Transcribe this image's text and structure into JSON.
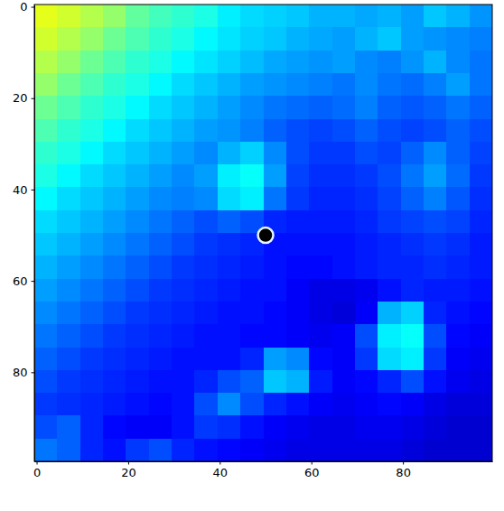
{
  "chart_data": {
    "type": "heatmap",
    "x": [
      2,
      7,
      12,
      17,
      22,
      27,
      32,
      37,
      42,
      47,
      52,
      57,
      62,
      67,
      72,
      77,
      82,
      87,
      92,
      97
    ],
    "y": [
      2,
      7,
      12,
      17,
      22,
      27,
      32,
      37,
      42,
      47,
      52,
      57,
      62,
      67,
      72,
      77,
      82,
      87,
      92,
      97
    ],
    "values": [
      [
        0.6,
        0.58,
        0.55,
        0.52,
        0.47,
        0.44,
        0.42,
        0.4,
        0.36,
        0.34,
        0.33,
        0.32,
        0.3,
        0.3,
        0.29,
        0.3,
        0.28,
        0.32,
        0.3,
        0.27
      ],
      [
        0.58,
        0.55,
        0.52,
        0.48,
        0.45,
        0.42,
        0.4,
        0.37,
        0.35,
        0.33,
        0.32,
        0.3,
        0.29,
        0.28,
        0.3,
        0.32,
        0.28,
        0.27,
        0.26,
        0.25
      ],
      [
        0.55,
        0.52,
        0.48,
        0.45,
        0.42,
        0.4,
        0.37,
        0.35,
        0.33,
        0.31,
        0.29,
        0.28,
        0.27,
        0.28,
        0.26,
        0.25,
        0.27,
        0.3,
        0.26,
        0.24
      ],
      [
        0.52,
        0.48,
        0.45,
        0.42,
        0.4,
        0.37,
        0.34,
        0.32,
        0.3,
        0.28,
        0.27,
        0.26,
        0.25,
        0.24,
        0.26,
        0.24,
        0.23,
        0.25,
        0.28,
        0.24
      ],
      [
        0.48,
        0.45,
        0.42,
        0.4,
        0.37,
        0.34,
        0.32,
        0.3,
        0.28,
        0.26,
        0.24,
        0.23,
        0.22,
        0.23,
        0.25,
        0.22,
        0.21,
        0.22,
        0.24,
        0.22
      ],
      [
        0.45,
        0.42,
        0.4,
        0.37,
        0.34,
        0.32,
        0.3,
        0.28,
        0.27,
        0.25,
        0.22,
        0.2,
        0.19,
        0.2,
        0.22,
        0.2,
        0.19,
        0.2,
        0.22,
        0.2
      ],
      [
        0.42,
        0.4,
        0.37,
        0.34,
        0.32,
        0.3,
        0.28,
        0.26,
        0.3,
        0.33,
        0.26,
        0.2,
        0.18,
        0.18,
        0.2,
        0.19,
        0.22,
        0.26,
        0.22,
        0.19
      ],
      [
        0.4,
        0.37,
        0.34,
        0.32,
        0.3,
        0.28,
        0.26,
        0.28,
        0.36,
        0.38,
        0.28,
        0.19,
        0.17,
        0.17,
        0.18,
        0.2,
        0.24,
        0.28,
        0.23,
        0.18
      ],
      [
        0.37,
        0.34,
        0.32,
        0.3,
        0.28,
        0.26,
        0.25,
        0.26,
        0.34,
        0.36,
        0.24,
        0.18,
        0.16,
        0.16,
        0.17,
        0.19,
        0.22,
        0.25,
        0.21,
        0.17
      ],
      [
        0.34,
        0.32,
        0.3,
        0.28,
        0.26,
        0.24,
        0.22,
        0.2,
        0.22,
        0.2,
        0.16,
        0.15,
        0.15,
        0.15,
        0.16,
        0.18,
        0.19,
        0.2,
        0.19,
        0.16
      ],
      [
        0.32,
        0.3,
        0.28,
        0.26,
        0.24,
        0.22,
        0.2,
        0.18,
        0.17,
        0.16,
        0.14,
        0.14,
        0.14,
        0.14,
        0.15,
        0.16,
        0.17,
        0.18,
        0.17,
        0.15
      ],
      [
        0.3,
        0.28,
        0.26,
        0.24,
        0.22,
        0.2,
        0.18,
        0.17,
        0.16,
        0.15,
        0.14,
        0.13,
        0.13,
        0.14,
        0.15,
        0.16,
        0.16,
        0.17,
        0.16,
        0.15
      ],
      [
        0.28,
        0.26,
        0.24,
        0.22,
        0.2,
        0.18,
        0.17,
        0.16,
        0.15,
        0.14,
        0.14,
        0.12,
        0.1,
        0.1,
        0.11,
        0.14,
        0.16,
        0.15,
        0.15,
        0.14
      ],
      [
        0.26,
        0.24,
        0.22,
        0.2,
        0.18,
        0.17,
        0.16,
        0.15,
        0.14,
        0.14,
        0.13,
        0.12,
        0.1,
        0.09,
        0.12,
        0.3,
        0.33,
        0.16,
        0.14,
        0.13
      ],
      [
        0.24,
        0.22,
        0.2,
        0.18,
        0.17,
        0.16,
        0.15,
        0.14,
        0.14,
        0.13,
        0.13,
        0.12,
        0.11,
        0.12,
        0.2,
        0.36,
        0.38,
        0.2,
        0.13,
        0.12
      ],
      [
        0.22,
        0.2,
        0.18,
        0.17,
        0.16,
        0.15,
        0.14,
        0.14,
        0.14,
        0.16,
        0.28,
        0.26,
        0.13,
        0.12,
        0.18,
        0.34,
        0.36,
        0.18,
        0.12,
        0.11
      ],
      [
        0.2,
        0.18,
        0.17,
        0.16,
        0.15,
        0.14,
        0.14,
        0.16,
        0.2,
        0.22,
        0.32,
        0.3,
        0.15,
        0.12,
        0.13,
        0.16,
        0.2,
        0.14,
        0.11,
        0.1
      ],
      [
        0.18,
        0.17,
        0.16,
        0.15,
        0.14,
        0.13,
        0.14,
        0.2,
        0.26,
        0.2,
        0.16,
        0.14,
        0.12,
        0.11,
        0.12,
        0.13,
        0.12,
        0.1,
        0.09,
        0.09
      ],
      [
        0.2,
        0.22,
        0.16,
        0.13,
        0.12,
        0.12,
        0.14,
        0.18,
        0.17,
        0.14,
        0.12,
        0.11,
        0.1,
        0.1,
        0.11,
        0.11,
        0.1,
        0.09,
        0.08,
        0.08
      ],
      [
        0.24,
        0.22,
        0.16,
        0.14,
        0.18,
        0.2,
        0.16,
        0.14,
        0.13,
        0.12,
        0.11,
        0.1,
        0.1,
        0.1,
        0.1,
        0.1,
        0.09,
        0.08,
        0.08,
        0.08
      ]
    ],
    "color_range": [
      0,
      1
    ],
    "series": [
      {
        "type": "scatter",
        "x": [
          50
        ],
        "values": [
          50
        ],
        "color": "#000000",
        "marker": "o"
      }
    ],
    "xlim": [
      -0.5,
      99.5
    ],
    "ylim": [
      99.5,
      -0.5
    ],
    "xticks": [
      0,
      20,
      40,
      60,
      80
    ],
    "yticks": [
      0,
      20,
      40,
      60,
      80
    ]
  }
}
